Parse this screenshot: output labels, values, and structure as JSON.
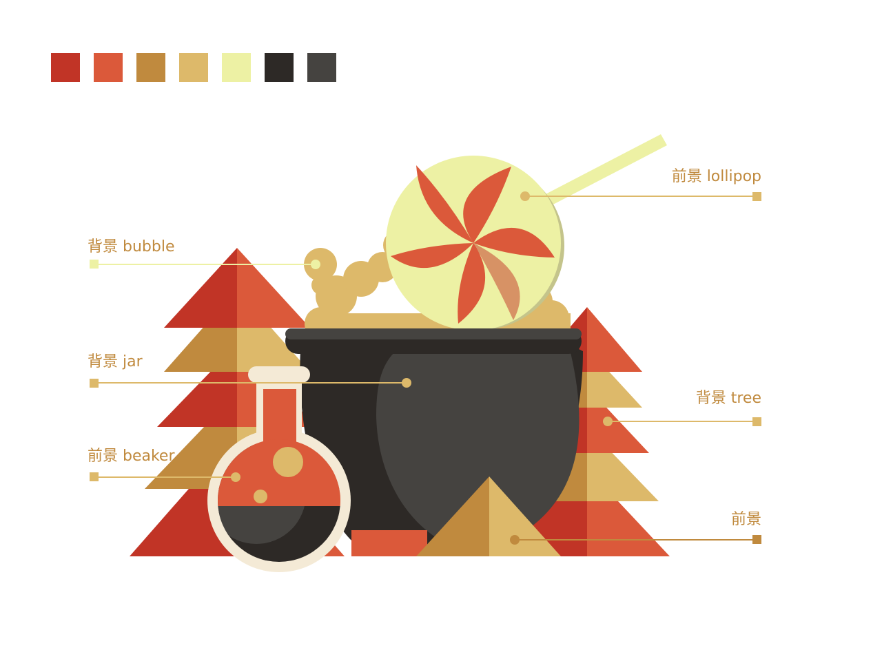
{
  "palette": [
    {
      "name": "red",
      "color": "#C13426"
    },
    {
      "name": "orange-red",
      "color": "#DB593A"
    },
    {
      "name": "bronze",
      "color": "#C08A3E"
    },
    {
      "name": "sand",
      "color": "#DDB96A"
    },
    {
      "name": "pale-yellow",
      "color": "#EDF1A4"
    },
    {
      "name": "near-black",
      "color": "#2D2926"
    },
    {
      "name": "charcoal",
      "color": "#454340"
    }
  ],
  "labels": {
    "bubble": {
      "text": "背景 bubble",
      "color": "#C08A3E",
      "marker_color": "#EDF1A4",
      "line_color": "#EDF1A4"
    },
    "jar": {
      "text": "背景 jar",
      "color": "#C08A3E",
      "marker_color": "#DDB96A",
      "line_color": "#DDB96A"
    },
    "beaker": {
      "text": "前景 beaker",
      "color": "#C08A3E",
      "marker_color": "#DDB96A",
      "line_color": "#DDB96A"
    },
    "lollipop": {
      "text": "前景 lollipop",
      "color": "#C08A3E",
      "marker_color": "#DDB96A",
      "line_color": "#DDB96A"
    },
    "tree": {
      "text": "背景 tree",
      "color": "#C08A3E",
      "marker_color": "#DDB96A",
      "line_color": "#DDB96A"
    },
    "foreground": {
      "text": "前景",
      "color": "#C08A3E",
      "marker_color": "#C08A3E",
      "line_color": "#C08A3E"
    }
  },
  "illustration": {
    "subjects": [
      "tree-left",
      "tree-right",
      "cauldron",
      "bubbles",
      "lollipop",
      "beaker",
      "pyramid"
    ]
  }
}
